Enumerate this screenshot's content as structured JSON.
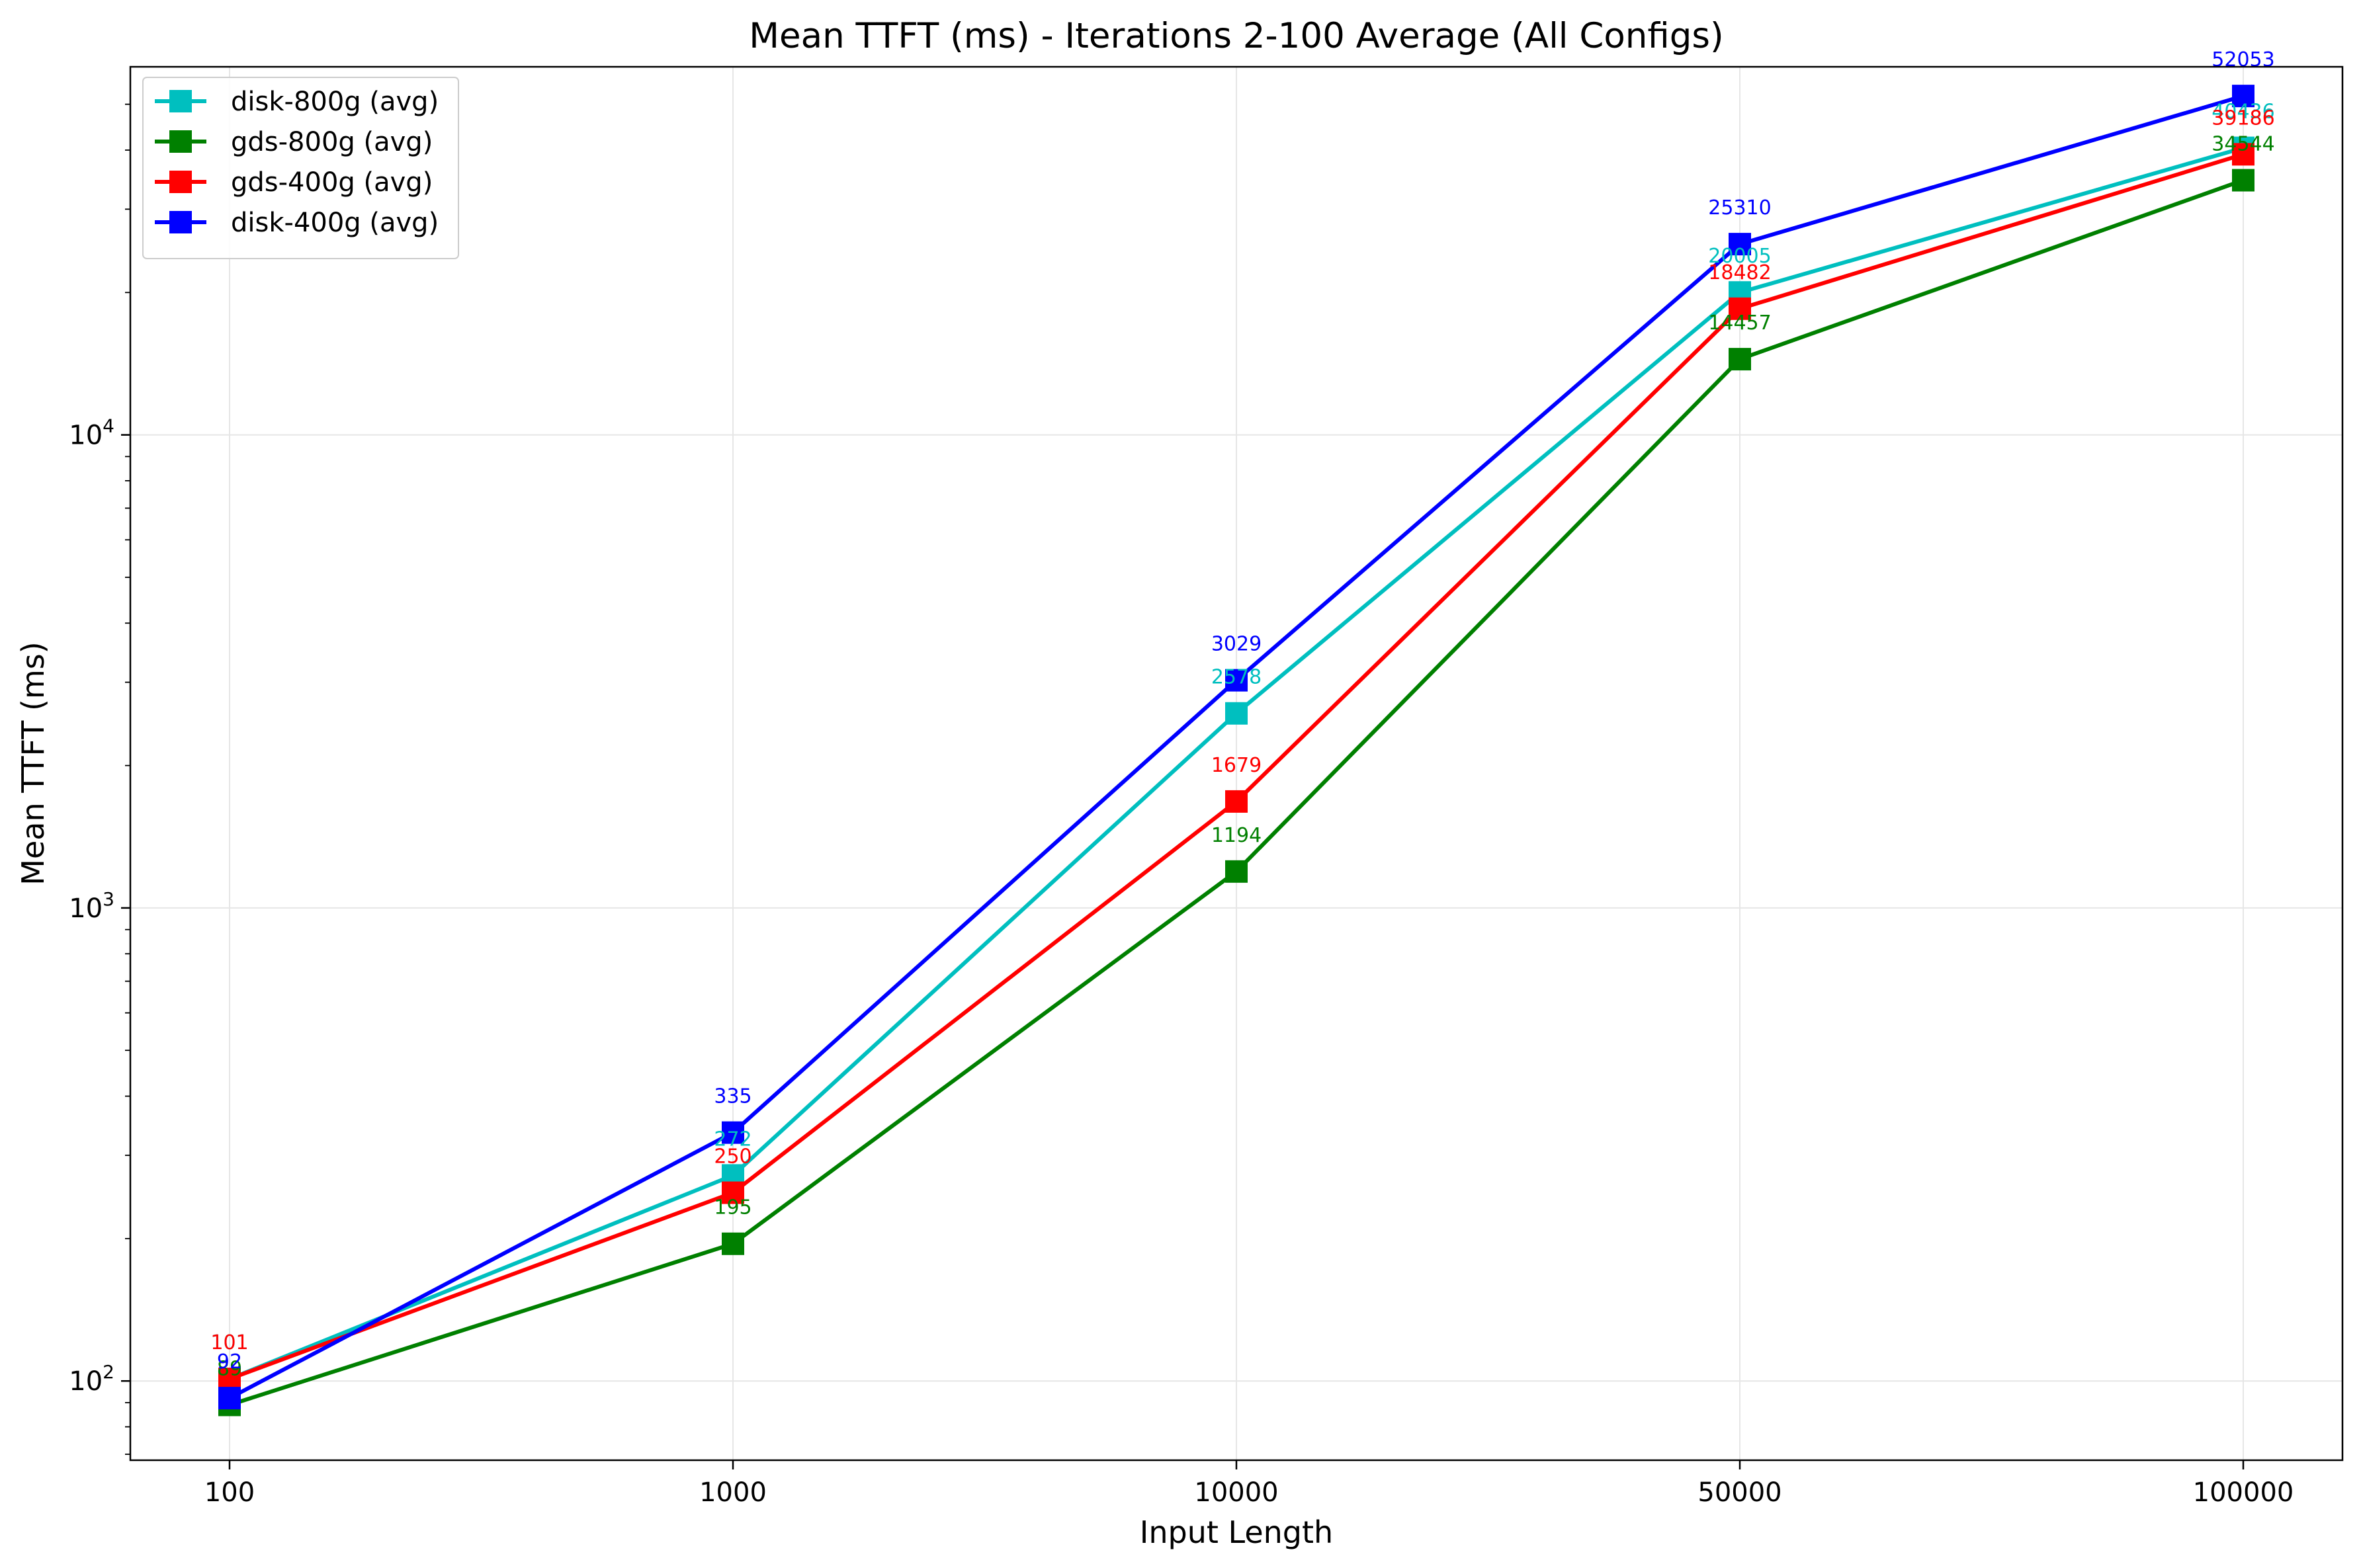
{
  "chart_data": {
    "type": "line",
    "title": "Mean TTFT (ms) - Iterations 2-100 Average (All Configs)",
    "xlabel": "Input Length",
    "ylabel": "Mean TTFT (ms)",
    "categories": [
      "100",
      "1000",
      "10000",
      "50000",
      "100000"
    ],
    "y_scale": "log",
    "ylim": [
      68,
      60000
    ],
    "y_ticks": [
      {
        "value": 100,
        "base": "10",
        "exp": "2"
      },
      {
        "value": 1000,
        "base": "10",
        "exp": "3"
      },
      {
        "value": 10000,
        "base": "10",
        "exp": "4"
      }
    ],
    "grid": true,
    "legend_position": "top-left",
    "marker": "square",
    "series": [
      {
        "name": "disk-800g (avg)",
        "color": "#00bfbf",
        "values": [
          101,
          272,
          2578,
          20005,
          40436
        ],
        "labels": [
          "101",
          "272",
          "2578",
          "20005",
          "40436"
        ]
      },
      {
        "name": "gds-800g (avg)",
        "color": "#008000",
        "values": [
          89,
          195,
          1194,
          14457,
          34544
        ],
        "labels": [
          "89",
          "195",
          "1194",
          "14457",
          "34544"
        ]
      },
      {
        "name": "gds-400g (avg)",
        "color": "#ff0000",
        "values": [
          101,
          250,
          1679,
          18482,
          39186
        ],
        "labels": [
          "101",
          "250",
          "1679",
          "18482",
          "39186"
        ]
      },
      {
        "name": "disk-400g (avg)",
        "color": "#0000ff",
        "values": [
          92,
          335,
          3029,
          25310,
          52053
        ],
        "labels": [
          "92",
          "335",
          "3029",
          "25310",
          "52053"
        ]
      }
    ]
  }
}
